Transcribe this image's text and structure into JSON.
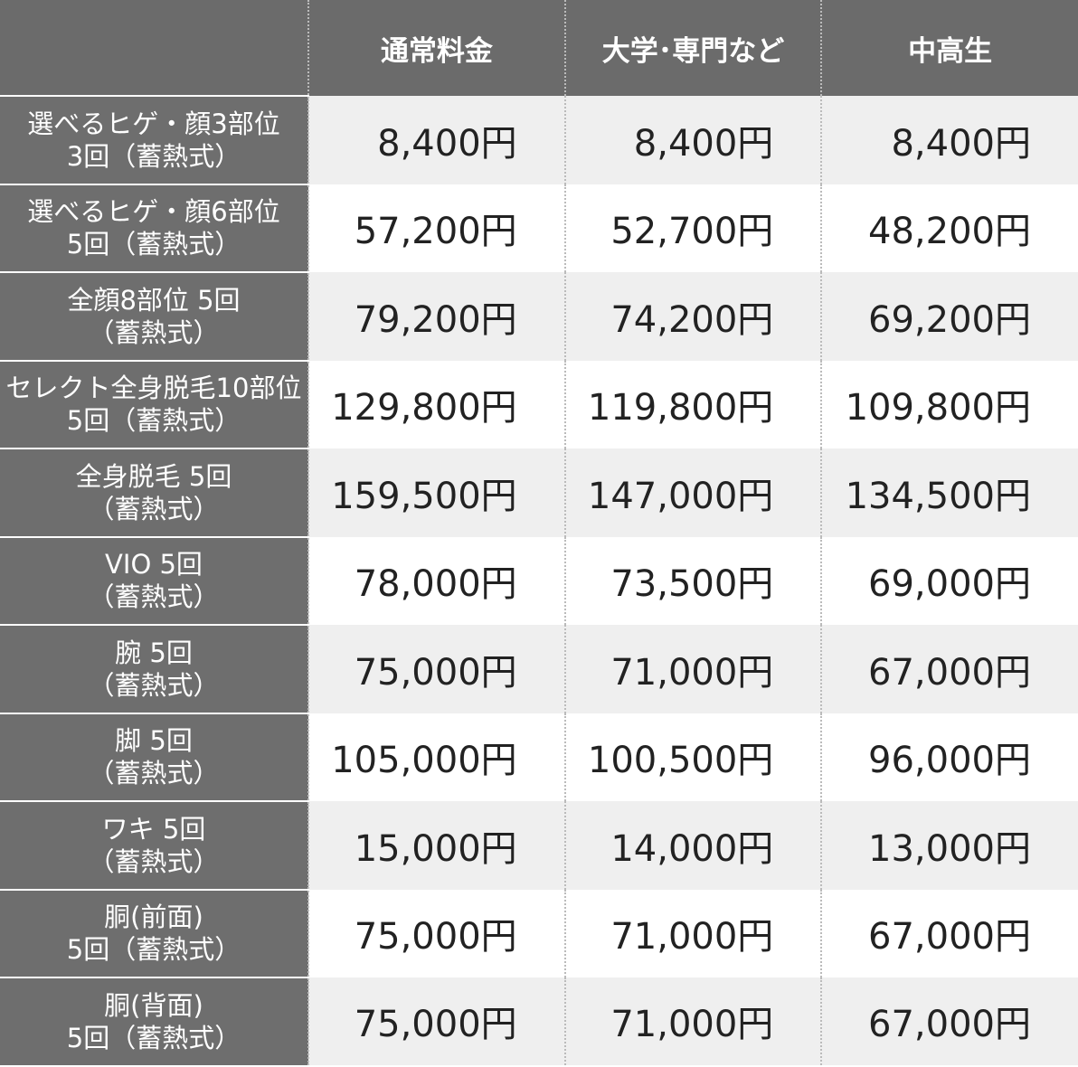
{
  "header": {
    "columns": [
      "通常料金",
      "大学･専門など",
      "中高生"
    ]
  },
  "rows": [
    {
      "label": [
        "選べるヒゲ・顔3部位",
        "3回（蓄熱式）"
      ],
      "prices": [
        "8,400円",
        "8,400円",
        "8,400円"
      ]
    },
    {
      "label": [
        "選べるヒゲ・顔6部位",
        "5回（蓄熱式）"
      ],
      "prices": [
        "57,200円",
        "52,700円",
        "48,200円"
      ]
    },
    {
      "label": [
        "全顔8部位 5回",
        "（蓄熱式）"
      ],
      "prices": [
        "79,200円",
        "74,200円",
        "69,200円"
      ]
    },
    {
      "label": [
        "セレクト全身脱毛10部位",
        "5回（蓄熱式）"
      ],
      "prices": [
        "129,800円",
        "119,800円",
        "109,800円"
      ]
    },
    {
      "label": [
        "全身脱毛 5回",
        "（蓄熱式）"
      ],
      "prices": [
        "159,500円",
        "147,000円",
        "134,500円"
      ]
    },
    {
      "label": [
        "VIO 5回",
        "（蓄熱式）"
      ],
      "prices": [
        "78,000円",
        "73,500円",
        "69,000円"
      ]
    },
    {
      "label": [
        "腕 5回",
        "（蓄熱式）"
      ],
      "prices": [
        "75,000円",
        "71,000円",
        "67,000円"
      ]
    },
    {
      "label": [
        "脚 5回",
        "（蓄熱式）"
      ],
      "prices": [
        "105,000円",
        "100,500円",
        "96,000円"
      ]
    },
    {
      "label": [
        "ワキ 5回",
        "（蓄熱式）"
      ],
      "prices": [
        "15,000円",
        "14,000円",
        "13,000円"
      ]
    },
    {
      "label": [
        "胴(前面)",
        "5回（蓄熱式）"
      ],
      "prices": [
        "75,000円",
        "71,000円",
        "67,000円"
      ]
    },
    {
      "label": [
        "胴(背面)",
        "5回（蓄熱式）"
      ],
      "prices": [
        "75,000円",
        "71,000円",
        "67,000円"
      ]
    }
  ]
}
